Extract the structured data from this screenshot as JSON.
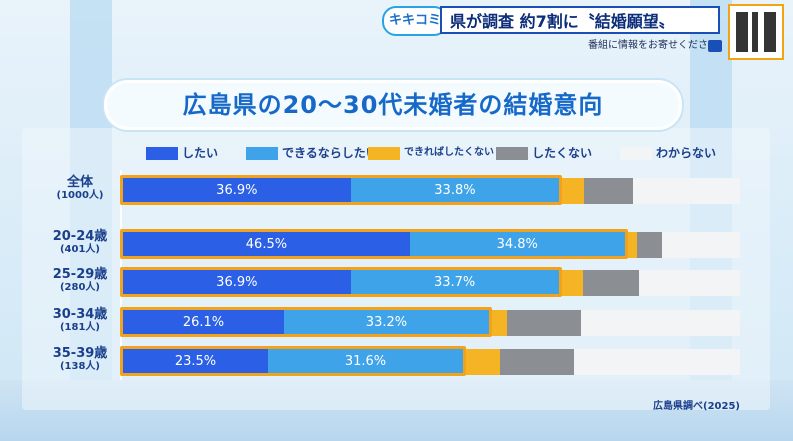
{
  "banner": {
    "badge": "キキコミ",
    "title": "県が調査 約7割に〝結婚願望〟",
    "subtitle": "番組に情報をお寄せください"
  },
  "colors": {
    "したい": "#2a5fe6",
    "できるならしたい": "#3ea3e8",
    "できればしたくない": "#f5b424",
    "したくない": "#8b8f94",
    "わからない": "#f2f4f6",
    "highlight": "#f3a31b",
    "title": "#1668c9"
  },
  "chart_data": {
    "type": "bar",
    "orientation": "horizontal-stacked-100",
    "title": "広島県の20～30代未婚者の結婚意向",
    "legend_position": "top",
    "series_names": [
      "したい",
      "できるならしたい",
      "できればしたくない",
      "したくない",
      "わからない"
    ],
    "categories": [
      {
        "label": "全体",
        "sub": "(1000人)"
      },
      {
        "label": "20-24歳",
        "sub": "(401人)"
      },
      {
        "label": "25-29歳",
        "sub": "(280人)"
      },
      {
        "label": "30-34歳",
        "sub": "(181人)"
      },
      {
        "label": "35-39歳",
        "sub": "(138人)"
      }
    ],
    "series": [
      {
        "name": "したい",
        "values": [
          36.9,
          46.5,
          36.9,
          26.1,
          23.5
        ],
        "labels": [
          "36.9%",
          "46.5%",
          "36.9%",
          "26.1%",
          "23.5%"
        ]
      },
      {
        "name": "できるならしたい",
        "values": [
          33.8,
          34.8,
          33.7,
          33.2,
          31.6
        ],
        "labels": [
          "33.8%",
          "34.8%",
          "33.7%",
          "33.2%",
          "31.6%"
        ]
      },
      {
        "name": "できればしたくない",
        "values": [
          4.0,
          2.0,
          4.0,
          3.0,
          6.0
        ]
      },
      {
        "name": "したくない",
        "values": [
          8.0,
          4.0,
          9.0,
          12.0,
          12.0
        ]
      },
      {
        "name": "わからない",
        "values": [
          17.3,
          12.7,
          16.4,
          25.7,
          26.9
        ]
      }
    ],
    "source": "広島県調べ(2025)"
  }
}
